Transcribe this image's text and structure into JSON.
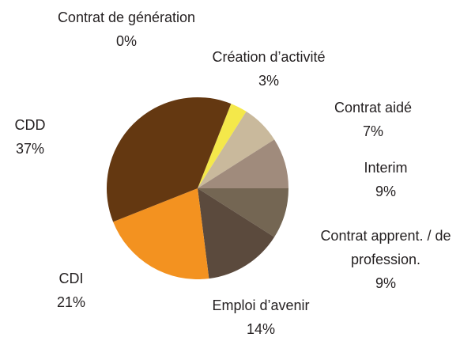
{
  "chart_data": {
    "type": "pie",
    "categories": [
      "Contrat de génération",
      "Création d’activité",
      "Contrat aidé",
      "Interim",
      "Contrat apprent. / de profession.",
      "Emploi d’avenir",
      "CDI",
      "CDD"
    ],
    "values": [
      0,
      3,
      7,
      9,
      9,
      14,
      21,
      37
    ],
    "value_labels": [
      "0%",
      "3%",
      "7%",
      "9%",
      "9%",
      "14%",
      "21%",
      "37%"
    ],
    "colors": [
      "#8a6a3a",
      "#f4e84a",
      "#c9b99c",
      "#a08b7c",
      "#746653",
      "#5b4a3d",
      "#f39220",
      "#643811"
    ]
  }
}
